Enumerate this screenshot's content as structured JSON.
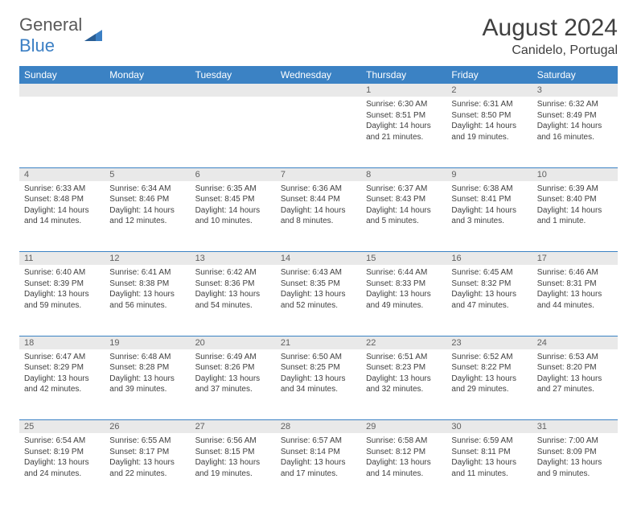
{
  "logo": {
    "text_gray": "General",
    "text_blue": "Blue"
  },
  "title": "August 2024",
  "location": "Canidelo, Portugal",
  "colors": {
    "header_bg": "#3b82c4",
    "header_fg": "#ffffff",
    "daynum_bg": "#e9e9e9",
    "row_divider": "#3b82c4",
    "text": "#404040"
  },
  "weekdays": [
    "Sunday",
    "Monday",
    "Tuesday",
    "Wednesday",
    "Thursday",
    "Friday",
    "Saturday"
  ],
  "weeks": [
    [
      null,
      null,
      null,
      null,
      {
        "d": "1",
        "sunrise": "6:30 AM",
        "sunset": "8:51 PM",
        "daylight": "14 hours and 21 minutes."
      },
      {
        "d": "2",
        "sunrise": "6:31 AM",
        "sunset": "8:50 PM",
        "daylight": "14 hours and 19 minutes."
      },
      {
        "d": "3",
        "sunrise": "6:32 AM",
        "sunset": "8:49 PM",
        "daylight": "14 hours and 16 minutes."
      }
    ],
    [
      {
        "d": "4",
        "sunrise": "6:33 AM",
        "sunset": "8:48 PM",
        "daylight": "14 hours and 14 minutes."
      },
      {
        "d": "5",
        "sunrise": "6:34 AM",
        "sunset": "8:46 PM",
        "daylight": "14 hours and 12 minutes."
      },
      {
        "d": "6",
        "sunrise": "6:35 AM",
        "sunset": "8:45 PM",
        "daylight": "14 hours and 10 minutes."
      },
      {
        "d": "7",
        "sunrise": "6:36 AM",
        "sunset": "8:44 PM",
        "daylight": "14 hours and 8 minutes."
      },
      {
        "d": "8",
        "sunrise": "6:37 AM",
        "sunset": "8:43 PM",
        "daylight": "14 hours and 5 minutes."
      },
      {
        "d": "9",
        "sunrise": "6:38 AM",
        "sunset": "8:41 PM",
        "daylight": "14 hours and 3 minutes."
      },
      {
        "d": "10",
        "sunrise": "6:39 AM",
        "sunset": "8:40 PM",
        "daylight": "14 hours and 1 minute."
      }
    ],
    [
      {
        "d": "11",
        "sunrise": "6:40 AM",
        "sunset": "8:39 PM",
        "daylight": "13 hours and 59 minutes."
      },
      {
        "d": "12",
        "sunrise": "6:41 AM",
        "sunset": "8:38 PM",
        "daylight": "13 hours and 56 minutes."
      },
      {
        "d": "13",
        "sunrise": "6:42 AM",
        "sunset": "8:36 PM",
        "daylight": "13 hours and 54 minutes."
      },
      {
        "d": "14",
        "sunrise": "6:43 AM",
        "sunset": "8:35 PM",
        "daylight": "13 hours and 52 minutes."
      },
      {
        "d": "15",
        "sunrise": "6:44 AM",
        "sunset": "8:33 PM",
        "daylight": "13 hours and 49 minutes."
      },
      {
        "d": "16",
        "sunrise": "6:45 AM",
        "sunset": "8:32 PM",
        "daylight": "13 hours and 47 minutes."
      },
      {
        "d": "17",
        "sunrise": "6:46 AM",
        "sunset": "8:31 PM",
        "daylight": "13 hours and 44 minutes."
      }
    ],
    [
      {
        "d": "18",
        "sunrise": "6:47 AM",
        "sunset": "8:29 PM",
        "daylight": "13 hours and 42 minutes."
      },
      {
        "d": "19",
        "sunrise": "6:48 AM",
        "sunset": "8:28 PM",
        "daylight": "13 hours and 39 minutes."
      },
      {
        "d": "20",
        "sunrise": "6:49 AM",
        "sunset": "8:26 PM",
        "daylight": "13 hours and 37 minutes."
      },
      {
        "d": "21",
        "sunrise": "6:50 AM",
        "sunset": "8:25 PM",
        "daylight": "13 hours and 34 minutes."
      },
      {
        "d": "22",
        "sunrise": "6:51 AM",
        "sunset": "8:23 PM",
        "daylight": "13 hours and 32 minutes."
      },
      {
        "d": "23",
        "sunrise": "6:52 AM",
        "sunset": "8:22 PM",
        "daylight": "13 hours and 29 minutes."
      },
      {
        "d": "24",
        "sunrise": "6:53 AM",
        "sunset": "8:20 PM",
        "daylight": "13 hours and 27 minutes."
      }
    ],
    [
      {
        "d": "25",
        "sunrise": "6:54 AM",
        "sunset": "8:19 PM",
        "daylight": "13 hours and 24 minutes."
      },
      {
        "d": "26",
        "sunrise": "6:55 AM",
        "sunset": "8:17 PM",
        "daylight": "13 hours and 22 minutes."
      },
      {
        "d": "27",
        "sunrise": "6:56 AM",
        "sunset": "8:15 PM",
        "daylight": "13 hours and 19 minutes."
      },
      {
        "d": "28",
        "sunrise": "6:57 AM",
        "sunset": "8:14 PM",
        "daylight": "13 hours and 17 minutes."
      },
      {
        "d": "29",
        "sunrise": "6:58 AM",
        "sunset": "8:12 PM",
        "daylight": "13 hours and 14 minutes."
      },
      {
        "d": "30",
        "sunrise": "6:59 AM",
        "sunset": "8:11 PM",
        "daylight": "13 hours and 11 minutes."
      },
      {
        "d": "31",
        "sunrise": "7:00 AM",
        "sunset": "8:09 PM",
        "daylight": "13 hours and 9 minutes."
      }
    ]
  ],
  "labels": {
    "sunrise": "Sunrise:",
    "sunset": "Sunset:",
    "daylight": "Daylight:"
  }
}
